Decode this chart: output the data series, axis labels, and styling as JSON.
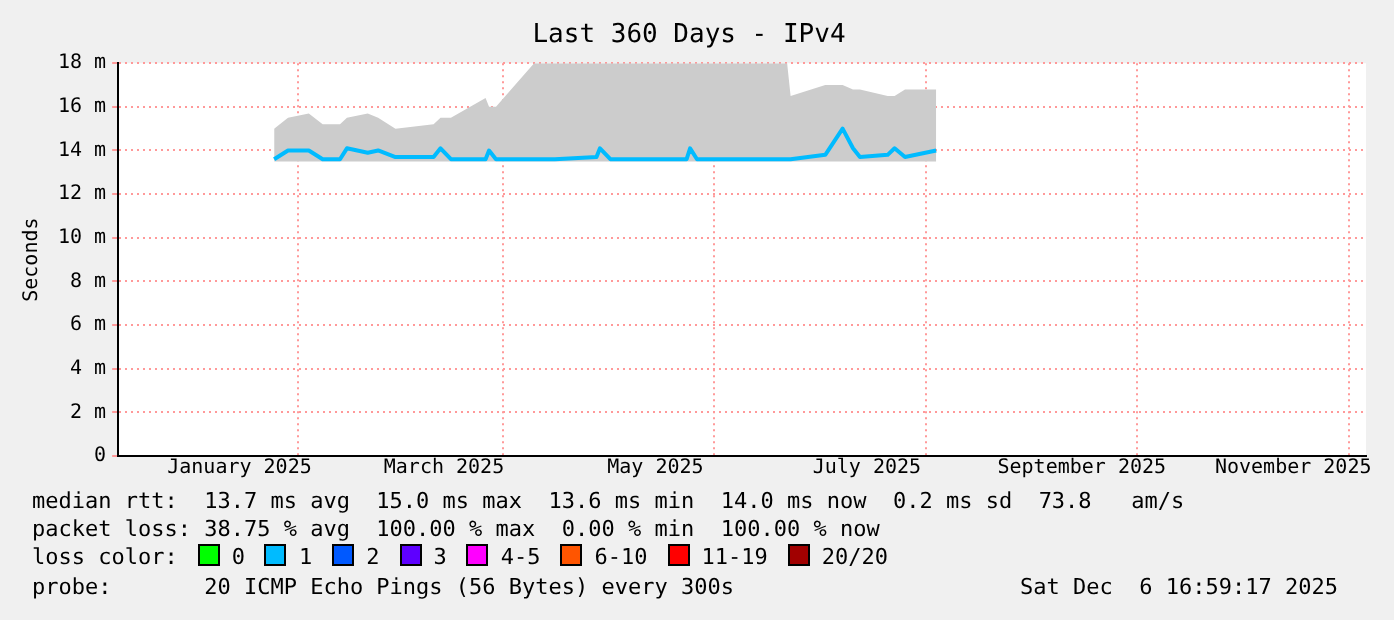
{
  "chart_data": {
    "type": "line",
    "title": "Last 360 Days - IPv4",
    "ylabel": "Seconds",
    "x": [
      "2025-01-25",
      "2025-01-29",
      "2025-02-04",
      "2025-02-08",
      "2025-02-13",
      "2025-02-15",
      "2025-02-21",
      "2025-02-24",
      "2025-03-01",
      "2025-03-12",
      "2025-03-14",
      "2025-03-17",
      "2025-03-27",
      "2025-03-28",
      "2025-03-30",
      "2025-04-10",
      "2025-04-16",
      "2025-04-28",
      "2025-04-29",
      "2025-05-02",
      "2025-05-24",
      "2025-05-25",
      "2025-05-27",
      "2025-06-22",
      "2025-06-23",
      "2025-07-03",
      "2025-07-08",
      "2025-07-11",
      "2025-07-13",
      "2025-07-21",
      "2025-07-23",
      "2025-07-26",
      "2025-08-04"
    ],
    "series": [
      {
        "name": "0",
        "color": "#00ff00",
        "values": [
          null,
          null,
          null,
          null,
          null,
          null,
          null,
          null,
          null,
          null,
          null,
          null,
          null,
          null,
          null,
          null,
          null,
          null,
          null,
          null,
          null,
          null,
          null,
          null,
          null,
          null,
          null,
          null,
          null,
          null,
          null,
          null,
          null
        ]
      },
      {
        "name": "1",
        "color": "#00bbff",
        "values": [
          13.6,
          14.0,
          14.0,
          13.6,
          13.6,
          14.1,
          13.9,
          14.0,
          13.7,
          13.7,
          14.1,
          13.6,
          13.6,
          14.0,
          13.6,
          13.6,
          13.6,
          13.7,
          14.1,
          13.6,
          13.6,
          14.1,
          13.6,
          13.6,
          13.6,
          13.8,
          15.0,
          14.1,
          13.7,
          13.8,
          14.1,
          13.7,
          14.0
        ],
        "lower": [
          13.5,
          13.5,
          13.5,
          13.5,
          13.5,
          13.5,
          13.5,
          13.5,
          13.5,
          13.5,
          13.5,
          13.5,
          13.5,
          13.5,
          13.5,
          13.5,
          13.5,
          13.5,
          13.5,
          13.5,
          13.5,
          13.5,
          13.5,
          13.5,
          13.5,
          13.5,
          13.5,
          13.5,
          13.5,
          13.5,
          13.5,
          13.5,
          13.5
        ],
        "upper": [
          15.0,
          15.5,
          15.7,
          15.2,
          15.2,
          15.5,
          15.7,
          15.5,
          15.0,
          15.2,
          15.5,
          15.5,
          16.4,
          16.0,
          16.0,
          18,
          18,
          18,
          18,
          18,
          18,
          18,
          18,
          18,
          16.5,
          17.0,
          17.0,
          16.8,
          16.8,
          16.5,
          16.5,
          16.8,
          16.8
        ]
      },
      {
        "name": "2",
        "color": "#0059ff",
        "values": [
          null,
          null,
          null,
          null,
          null,
          null,
          null,
          null,
          null,
          null,
          null,
          null,
          null,
          null,
          null,
          null,
          null,
          null,
          null,
          null,
          null,
          null,
          null,
          null,
          null,
          null,
          null,
          null,
          null,
          null,
          null,
          null,
          null
        ]
      },
      {
        "name": "3",
        "color": "#5e00ff",
        "values": [
          null,
          null,
          null,
          null,
          null,
          null,
          null,
          null,
          null,
          null,
          null,
          null,
          null,
          null,
          null,
          null,
          null,
          null,
          null,
          null,
          null,
          null,
          null,
          null,
          null,
          null,
          null,
          null,
          null,
          null,
          null,
          null,
          null
        ]
      },
      {
        "name": "4-5",
        "color": "#ff00ff",
        "values": [
          null,
          null,
          null,
          null,
          null,
          null,
          null,
          null,
          null,
          null,
          null,
          null,
          null,
          null,
          null,
          null,
          null,
          null,
          null,
          null,
          null,
          null,
          null,
          null,
          null,
          null,
          null,
          null,
          null,
          null,
          null,
          null,
          null
        ]
      },
      {
        "name": "6-10",
        "color": "#ff5500",
        "values": [
          null,
          null,
          null,
          null,
          null,
          null,
          null,
          null,
          null,
          null,
          null,
          null,
          null,
          null,
          null,
          null,
          null,
          null,
          null,
          null,
          null,
          null,
          null,
          null,
          null,
          null,
          null,
          null,
          null,
          null,
          null,
          null,
          null
        ]
      },
      {
        "name": "11-19",
        "color": "#ff0000",
        "values": [
          null,
          null,
          null,
          null,
          null,
          null,
          null,
          null,
          null,
          null,
          null,
          null,
          null,
          null,
          null,
          null,
          null,
          null,
          null,
          null,
          null,
          null,
          null,
          null,
          null,
          null,
          null,
          null,
          null,
          null,
          null,
          null,
          null
        ]
      },
      {
        "name": "20/20",
        "color": "#a10000",
        "values": [
          null,
          null,
          null,
          null,
          null,
          null,
          null,
          null,
          null,
          null,
          null,
          null,
          null,
          null,
          null,
          null,
          null,
          null,
          null,
          null,
          null,
          null,
          null,
          null,
          null,
          null,
          null,
          null,
          null,
          null,
          null,
          null,
          null
        ]
      }
    ],
    "legend": "bottom",
    "legend_title": "loss color:",
    "xlim": [
      "2024-12-11",
      "2025-12-06"
    ],
    "xticks": [
      {
        "value": "2025-01-15",
        "label": "January 2025"
      },
      {
        "value": "2025-02-01",
        "label": null
      },
      {
        "value": "2025-03-15",
        "label": "March 2025"
      },
      {
        "value": "2025-04-01",
        "label": null
      },
      {
        "value": "2025-05-15",
        "label": "May 2025"
      },
      {
        "value": "2025-06-01",
        "label": null
      },
      {
        "value": "2025-07-15",
        "label": "July 2025"
      },
      {
        "value": "2025-08-01",
        "label": null
      },
      {
        "value": "2025-09-15",
        "label": "September 2025"
      },
      {
        "value": "2025-10-01",
        "label": null
      },
      {
        "value": "2025-11-15",
        "label": "November 2025"
      },
      {
        "value": "2025-12-01",
        "label": null
      }
    ],
    "ylim": [
      0,
      18
    ],
    "yticks": [
      0,
      {
        "value": 2,
        "label": "2 m"
      },
      {
        "value": 4,
        "label": "4 m"
      },
      {
        "value": 6,
        "label": "6 m"
      },
      {
        "value": 8,
        "label": "8 m"
      },
      {
        "value": 10,
        "label": "10 m"
      },
      {
        "value": 12,
        "label": "12 m"
      },
      {
        "value": 14,
        "label": "14 m"
      },
      {
        "value": 16,
        "label": "16 m"
      },
      {
        "value": 18,
        "label": "18 m"
      }
    ],
    "grid": true,
    "marker": "none",
    "line_style": "solid",
    "annotations": [
      "median rtt:  13.7 ms avg  15.0 ms max  13.6 ms min  14.0 ms now  0.2 ms sd  73.8   am/s",
      "packet loss: 38.75 % avg  100.00 % max  0.00 % min  100.00 % now",
      "probe:       20 ICMP Echo Pings (56 Bytes) every 300s",
      "Sat Dec  6 16:59:17 2025"
    ]
  }
}
